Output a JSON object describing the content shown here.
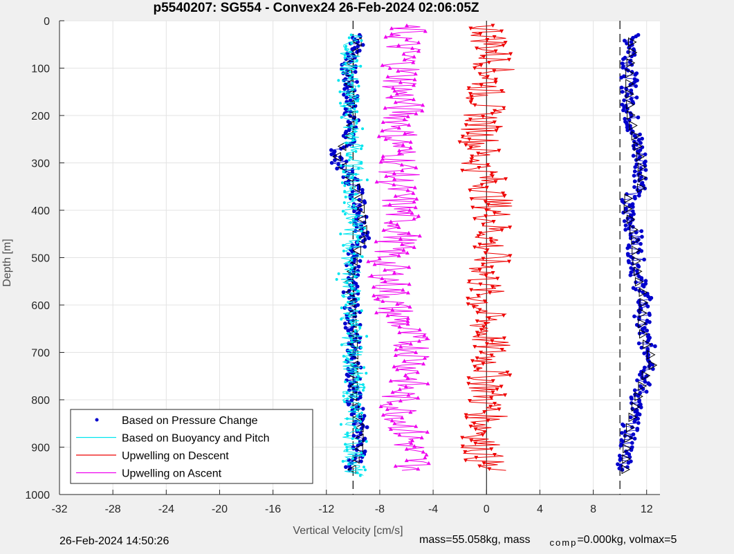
{
  "footer": {
    "timestamp": "26-Feb-2024 14:50:26",
    "mass_text": "mass=55.058kg, mass",
    "comp_sub": "comp",
    "comp_text": "=0.000kg, volmax=5"
  },
  "chart_data": {
    "type": "scatter",
    "title": "p5540207: SG554 - Convex24 26-Feb-2024 02:06:05Z",
    "xlabel": "Vertical Velocity [cm/s]",
    "ylabel": "Depth [m]",
    "xlim": [
      -32,
      13
    ],
    "ylim": [
      1000,
      0
    ],
    "y_reversed": true,
    "grid": true,
    "legend_position": "bottom-left",
    "xticks": [
      -32,
      -28,
      -24,
      -20,
      -16,
      -12,
      -8,
      -4,
      0,
      4,
      8,
      12
    ],
    "yticks": [
      0,
      100,
      200,
      300,
      400,
      500,
      600,
      700,
      800,
      900,
      1000
    ],
    "reference_lines_x": [
      -10,
      10
    ],
    "colors": {
      "pressure": "#0000cc",
      "buoyancy": "#00e5ee",
      "descent": "#ee0000",
      "ascent": "#ee00ee"
    },
    "series": [
      {
        "name": "Based on Pressure Change",
        "style": "dots",
        "profiles": [
          {
            "depth": [
              30,
              60,
              100,
              150,
              200,
              250,
              280,
              300,
              350,
              400,
              450,
              500,
              550,
              600,
              650,
              700,
              750,
              800,
              850,
              900,
              950
            ],
            "velocity": [
              -9.5,
              -9.8,
              -10.4,
              -10.2,
              -10.1,
              -10.3,
              -11.3,
              -11.0,
              -9.8,
              -9.4,
              -9.2,
              -9.9,
              -10.3,
              -10.1,
              -10.0,
              -9.9,
              -9.9,
              -10.0,
              -9.5,
              -9.5,
              -10.1
            ]
          },
          {
            "depth": [
              30,
              60,
              100,
              150,
              200,
              250,
              300,
              350,
              380,
              400,
              450,
              500,
              550,
              580,
              650,
              700,
              720,
              750,
              800,
              850,
              900,
              950
            ],
            "velocity": [
              10.8,
              11.0,
              10.7,
              10.7,
              10.8,
              11.2,
              11.6,
              11.7,
              10.4,
              10.6,
              11.1,
              11.2,
              11.4,
              11.8,
              11.6,
              12.2,
              12.6,
              11.9,
              11.3,
              10.8,
              10.5,
              10.4
            ]
          }
        ]
      },
      {
        "name": "Based on Buoyancy and Pitch",
        "style": "line",
        "profiles": [
          {
            "depth": [
              30,
              100,
              200,
              300,
              400,
              500,
              600,
              700,
              800,
              900,
              960
            ],
            "velocity": [
              -10.0,
              -10.3,
              -10.2,
              -10.0,
              -10.0,
              -10.1,
              -10.2,
              -10.0,
              -10.0,
              -10.0,
              -10.0
            ]
          }
        ]
      },
      {
        "name": "Upwelling on Descent",
        "style": "line-triangle-down",
        "profiles": [
          {
            "depth": [
              10,
              50,
              100,
              150,
              200,
              250,
              300,
              350,
              400,
              450,
              500,
              550,
              600,
              650,
              700,
              750,
              800,
              850,
              900,
              950
            ],
            "velocity": [
              0.0,
              0.4,
              0.6,
              -0.1,
              -0.2,
              -0.4,
              -0.5,
              0.2,
              0.6,
              0.4,
              0.2,
              -0.2,
              -0.2,
              0.0,
              0.3,
              0.2,
              0.0,
              0.0,
              -0.4,
              0.0
            ]
          }
        ]
      },
      {
        "name": "Upwelling on Ascent",
        "style": "line-triangle-up",
        "profiles": [
          {
            "depth": [
              10,
              50,
              100,
              150,
              200,
              250,
              300,
              350,
              400,
              450,
              500,
              550,
              600,
              650,
              700,
              750,
              800,
              850,
              900,
              950
            ],
            "velocity": [
              -6.0,
              -6.3,
              -6.2,
              -6.4,
              -6.2,
              -6.6,
              -6.4,
              -6.8,
              -6.5,
              -6.3,
              -7.5,
              -7.2,
              -7.1,
              -6.2,
              -5.2,
              -5.6,
              -6.7,
              -6.0,
              -5.7,
              -5.2
            ]
          }
        ]
      }
    ]
  }
}
